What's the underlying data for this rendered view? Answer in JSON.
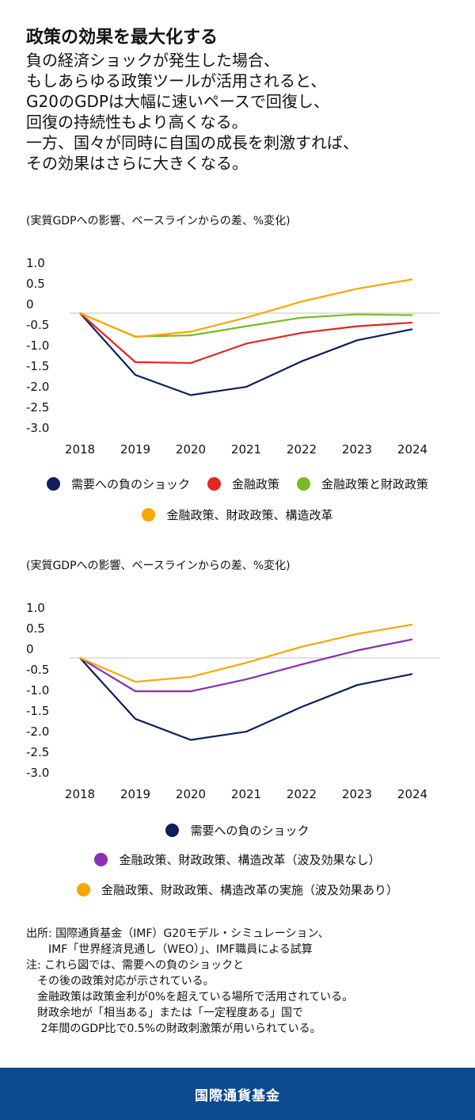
{
  "header": {
    "title": "政策の効果を最大化する",
    "body_lines": [
      "負の経済ショックが発生した場合、",
      "もしあらゆる政策ツールが活用されると、",
      "G20のGDPは大幅に速いペースで回復し、",
      "回復の持続性もより高くなる。",
      "一方、国々が同時に自国の成長を刺激すれば、",
      "その効果はさらに大きくなる。"
    ]
  },
  "chart_data": [
    {
      "type": "line",
      "subtitle": "(実質GDPへの影響、ベースラインからの差、%変化)",
      "x": [
        "2018",
        "2019",
        "2020",
        "2021",
        "2022",
        "2023",
        "2024"
      ],
      "y_ticks": [
        "1.0",
        "0.5",
        "0",
        "-0.5",
        "-1.0",
        "-1.5",
        "-2.0",
        "-2.5",
        "-3.0"
      ],
      "ylim": [
        -3.0,
        1.0
      ],
      "grid": "zero line only",
      "legend_position": "bottom",
      "series": [
        {
          "name": "需要への負のショック",
          "color": "#0d1f5c",
          "values": [
            0,
            -1.5,
            -1.99,
            -1.79,
            -1.17,
            -0.66,
            -0.39
          ]
        },
        {
          "name": "金融政策",
          "color": "#e0281e",
          "values": [
            0,
            -1.19,
            -1.21,
            -0.74,
            -0.48,
            -0.32,
            -0.23
          ]
        },
        {
          "name": "金融政策と財政政策",
          "color": "#76bc21",
          "values": [
            0,
            -0.57,
            -0.54,
            -0.32,
            -0.11,
            -0.03,
            -0.05
          ]
        },
        {
          "name": "金融政策、財政政策、構造改革",
          "color": "#f5a800",
          "values": [
            0,
            -0.58,
            -0.45,
            -0.11,
            0.28,
            0.59,
            0.82
          ]
        }
      ]
    },
    {
      "type": "line",
      "subtitle": "(実質GDPへの影響、ベースラインからの差、%変化)",
      "x": [
        "2018",
        "2019",
        "2020",
        "2021",
        "2022",
        "2023",
        "2024"
      ],
      "y_ticks": [
        "1.0",
        "0.5",
        "0",
        "-0.5",
        "-1.0",
        "-1.5",
        "-2.0",
        "-2.5",
        "-3.0"
      ],
      "ylim": [
        -3.0,
        1.0
      ],
      "grid": "zero line only",
      "legend_position": "bottom",
      "series": [
        {
          "name": "需要への負のショック",
          "color": "#0d1f5c",
          "values": [
            0,
            -1.48,
            -1.99,
            -1.79,
            -1.19,
            -0.66,
            -0.39
          ]
        },
        {
          "name": "金融政策、財政政策、構造改革（波及効果なし）",
          "color": "#8a2fb3",
          "values": [
            0,
            -0.81,
            -0.81,
            -0.52,
            -0.16,
            0.18,
            0.45
          ]
        },
        {
          "name": "金融政策、財政政策、構造改革の実施（波及効果あり）",
          "color": "#f5a800",
          "values": [
            0,
            -0.58,
            -0.46,
            -0.12,
            0.27,
            0.58,
            0.81
          ]
        }
      ]
    }
  ],
  "footer": {
    "lines": [
      "出所: 国際通貨基金（IMF）G20モデル・シミュレーション、",
      "　　IMF「世界経済見通し（WEO）」、IMF職員による試算",
      "注: これら図では、需要への負のショックと",
      "　その後の政策対応が示されている。",
      "　金融政策は政策金利が0%を超えている場所で活用されている。",
      "　財政余地が「相当ある」または「一定程度ある」国で",
      "　 2年間のGDP比で0.5%の財政刺激策が用いられている。"
    ]
  },
  "brand_bar": {
    "label": "国際通貨基金",
    "color": "#0b4a8f"
  }
}
